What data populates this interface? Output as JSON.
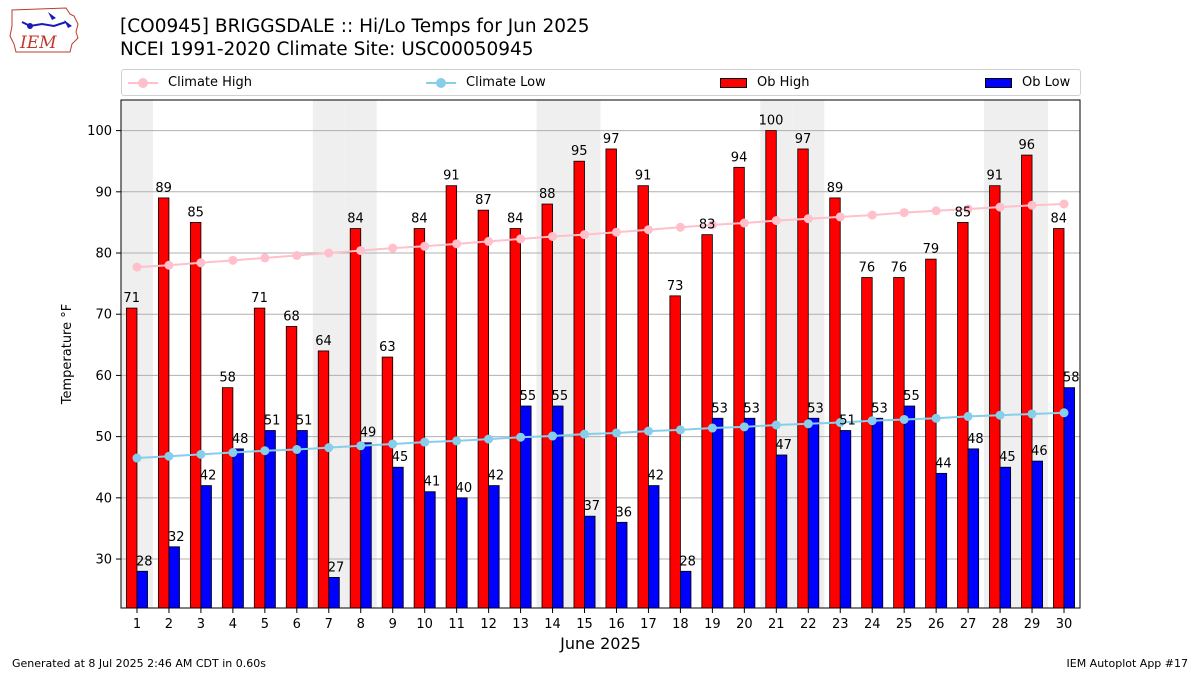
{
  "title": {
    "line1": "[CO0945] BRIGGSDALE :: Hi/Lo Temps for Jun 2025",
    "line2": "NCEI 1991-2020 Climate Site: USC00050945"
  },
  "logo_text": "IEM",
  "footer": {
    "left": "Generated at 8 Jul 2025 2:46 AM CDT in 0.60s",
    "right": "IEM Autoplot App #17"
  },
  "colors": {
    "ob_high": "#ff0000",
    "ob_low": "#0000ff",
    "climate_high": "#ffc0cb",
    "climate_low": "#87ceeb",
    "weekend_shade": "#efefef"
  },
  "chart_data": {
    "type": "bar",
    "xlabel": "June 2025",
    "ylabel": "Temperature °F",
    "ylim": [
      22,
      105
    ],
    "yticks": [
      30,
      40,
      50,
      60,
      70,
      80,
      90,
      100
    ],
    "grid": "horizontal",
    "legend_position": "top",
    "categories": [
      "1",
      "2",
      "3",
      "4",
      "5",
      "6",
      "7",
      "8",
      "9",
      "10",
      "11",
      "12",
      "13",
      "14",
      "15",
      "16",
      "17",
      "18",
      "19",
      "20",
      "21",
      "22",
      "23",
      "24",
      "25",
      "26",
      "27",
      "28",
      "29",
      "30"
    ],
    "shaded_days": [
      1,
      7,
      8,
      14,
      15,
      21,
      22,
      28,
      29
    ],
    "series": [
      {
        "name": "Ob High",
        "kind": "bar",
        "values": [
          71,
          89,
          85,
          58,
          71,
          68,
          64,
          84,
          63,
          84,
          91,
          87,
          84,
          88,
          95,
          97,
          91,
          73,
          83,
          94,
          100,
          97,
          89,
          76,
          76,
          79,
          85,
          91,
          96,
          84
        ]
      },
      {
        "name": "Ob Low",
        "kind": "bar",
        "values": [
          28,
          32,
          42,
          48,
          51,
          51,
          27,
          49,
          45,
          41,
          40,
          42,
          55,
          55,
          37,
          36,
          42,
          28,
          53,
          53,
          47,
          53,
          51,
          53,
          55,
          44,
          48,
          45,
          46,
          58
        ]
      },
      {
        "name": "Climate High",
        "kind": "line",
        "values": [
          77.7,
          78.0,
          78.4,
          78.8,
          79.2,
          79.6,
          80.0,
          80.4,
          80.8,
          81.1,
          81.5,
          81.9,
          82.3,
          82.7,
          83.0,
          83.4,
          83.8,
          84.2,
          84.6,
          84.9,
          85.3,
          85.6,
          85.9,
          86.2,
          86.6,
          86.9,
          87.2,
          87.5,
          87.8,
          88.0
        ]
      },
      {
        "name": "Climate Low",
        "kind": "line",
        "values": [
          46.5,
          46.8,
          47.1,
          47.4,
          47.7,
          47.9,
          48.2,
          48.5,
          48.8,
          49.1,
          49.3,
          49.6,
          49.9,
          50.1,
          50.4,
          50.6,
          50.9,
          51.1,
          51.4,
          51.6,
          51.9,
          52.1,
          52.3,
          52.6,
          52.8,
          53.0,
          53.3,
          53.5,
          53.7,
          53.9
        ]
      }
    ]
  }
}
